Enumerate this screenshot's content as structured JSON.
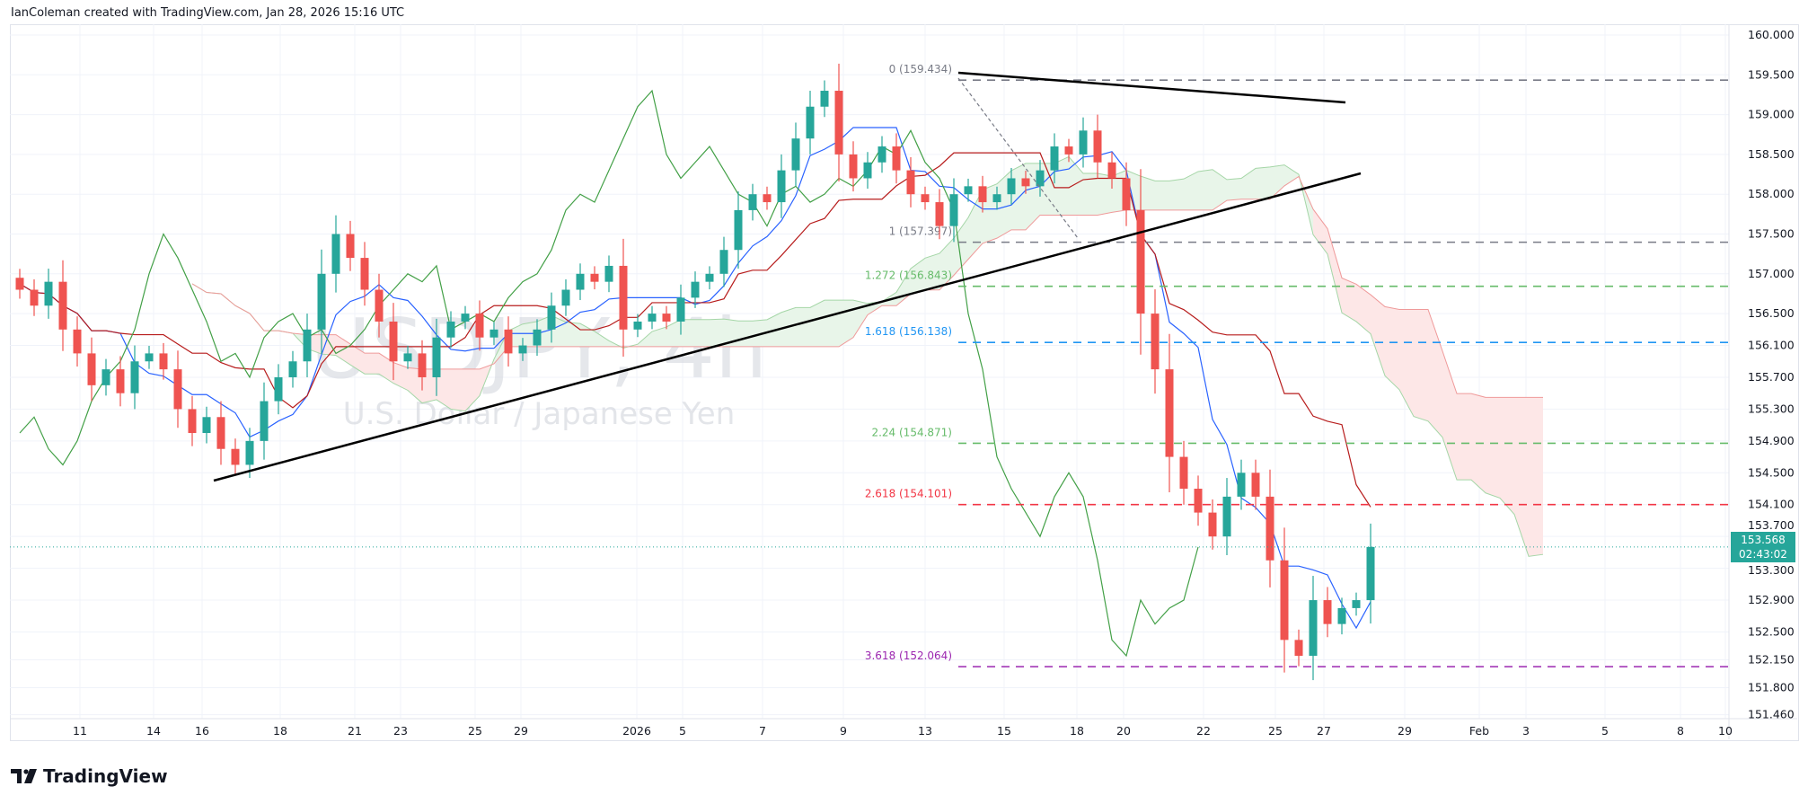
{
  "header": "IanColeman created with TradingView.com, Jan 28, 2026 15:16 UTC",
  "logo": "TradingView",
  "watermark": {
    "symbol": "USDJPY, 4h",
    "description": "U.S. Dollar / Japanese Yen"
  },
  "last_price": {
    "value": "153.568",
    "countdown": "02:43:02",
    "color": "#26a69a"
  },
  "chart_data": {
    "type": "candlestick",
    "symbol": "USDJPY",
    "interval": "4h",
    "ylim": [
      151.46,
      160.0
    ],
    "y_ticks": [
      "160.000",
      "159.500",
      "159.000",
      "158.500",
      "158.000",
      "157.500",
      "157.000",
      "156.500",
      "156.100",
      "155.700",
      "155.300",
      "154.900",
      "154.500",
      "154.100",
      "153.700",
      "153.300",
      "152.900",
      "152.500",
      "152.150",
      "151.800",
      "151.460"
    ],
    "x_ticks": [
      "11",
      "14",
      "16",
      "18",
      "21",
      "23",
      "25",
      "29",
      "2026",
      "5",
      "7",
      "9",
      "13",
      "15",
      "18",
      "20",
      "22",
      "25",
      "27",
      "29",
      "Feb",
      "3",
      "5",
      "8",
      "10"
    ],
    "grid": true,
    "colors": {
      "up": "#26a69a",
      "down": "#ef5350",
      "tenkan": "#2962ff",
      "kijun": "#b71c1c",
      "chikou": "#43a047",
      "cloud_up": "#e8f5e9",
      "cloud_down": "#fde7e7"
    },
    "closes": [
      156.8,
      156.6,
      156.9,
      156.3,
      156.0,
      155.6,
      155.8,
      155.5,
      155.9,
      156.0,
      155.8,
      155.3,
      155.0,
      155.2,
      154.8,
      154.6,
      154.9,
      155.4,
      155.7,
      155.9,
      156.3,
      157.0,
      157.5,
      157.2,
      156.8,
      156.4,
      155.9,
      156.0,
      155.7,
      156.2,
      156.4,
      156.5,
      156.2,
      156.3,
      156.0,
      156.1,
      156.3,
      156.6,
      156.8,
      157.0,
      156.9,
      157.1,
      156.3,
      156.4,
      156.5,
      156.4,
      156.7,
      156.9,
      157.0,
      157.3,
      157.8,
      158.0,
      157.9,
      158.3,
      158.7,
      159.1,
      159.3,
      158.5,
      158.2,
      158.4,
      158.6,
      158.3,
      158.0,
      157.9,
      157.6,
      158.0,
      158.1,
      157.9,
      158.0,
      158.2,
      158.1,
      158.3,
      158.6,
      158.5,
      158.8,
      158.4,
      158.2,
      157.8,
      156.5,
      155.8,
      154.7,
      154.3,
      154.0,
      153.7,
      154.2,
      154.5,
      154.2,
      153.4,
      152.4,
      152.2,
      152.9,
      152.6,
      152.8,
      152.9,
      153.568
    ],
    "fibonacci": [
      {
        "level": "0 (159.434)",
        "price": 159.434,
        "color": "#787b86"
      },
      {
        "level": "1 (157.397)",
        "price": 157.397,
        "color": "#787b86"
      },
      {
        "level": "1.272 (156.843)",
        "price": 156.843,
        "color": "#66bb6a"
      },
      {
        "level": "1.618 (156.138)",
        "price": 156.138,
        "color": "#2196f3"
      },
      {
        "level": "2.24 (154.871)",
        "price": 154.871,
        "color": "#66bb6a"
      },
      {
        "level": "2.618 (154.101)",
        "price": 154.101,
        "color": "#f23645"
      },
      {
        "level": "3.618 (152.064)",
        "price": 152.064,
        "color": "#9c27b0"
      }
    ]
  }
}
